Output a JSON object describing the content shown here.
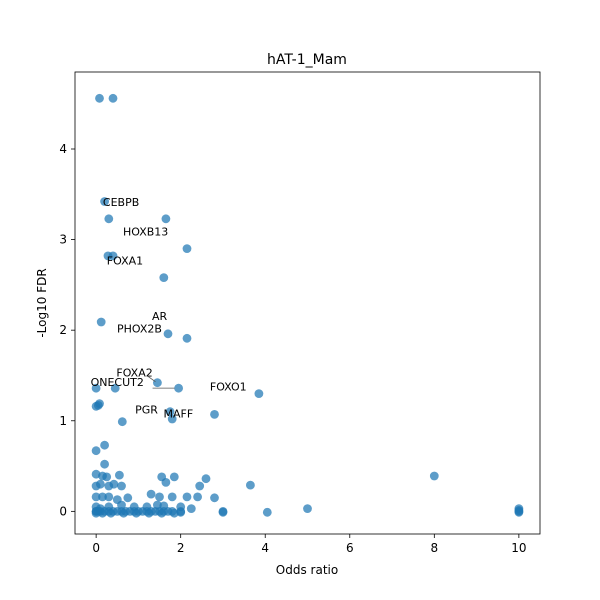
{
  "chart_data": {
    "type": "scatter",
    "title": "hAT-1_Mam",
    "xlabel": "Odds ratio",
    "ylabel": "-Log10 FDR",
    "xlim": [
      -0.5,
      10.5
    ],
    "ylim": [
      -0.25,
      4.85
    ],
    "xticks": [
      0,
      2,
      4,
      6,
      8,
      10
    ],
    "yticks": [
      0,
      1,
      2,
      3,
      4
    ],
    "grid": false,
    "point_color": "#1f77b4",
    "annotations": [
      {
        "label": "CEBPB",
        "x": 1.65,
        "y": 3.23
      },
      {
        "label": "HOXB13",
        "x": 2.15,
        "y": 2.9
      },
      {
        "label": "FOXA1",
        "x": 1.6,
        "y": 2.58
      },
      {
        "label": "AR",
        "x": 1.7,
        "y": 1.96
      },
      {
        "label": "PHOX2B",
        "x": 2.15,
        "y": 1.91
      },
      {
        "label": "FOXA2",
        "x": 1.45,
        "y": 1.42
      },
      {
        "label": "ONECUT2",
        "x": 1.95,
        "y": 1.36
      },
      {
        "label": "FOXO1",
        "x": 3.85,
        "y": 1.3
      },
      {
        "label": "PGR",
        "x": 1.75,
        "y": 1.1
      },
      {
        "label": "MAFF",
        "x": 2.8,
        "y": 1.07
      }
    ],
    "points": [
      [
        0.08,
        4.56
      ],
      [
        0.4,
        4.56
      ],
      [
        0.2,
        3.42
      ],
      [
        0.3,
        3.23
      ],
      [
        1.65,
        3.23
      ],
      [
        0.28,
        2.82
      ],
      [
        0.4,
        2.82
      ],
      [
        2.15,
        2.9
      ],
      [
        1.6,
        2.58
      ],
      [
        0.12,
        2.09
      ],
      [
        1.7,
        1.96
      ],
      [
        2.15,
        1.91
      ],
      [
        1.45,
        1.42
      ],
      [
        1.95,
        1.36
      ],
      [
        0.0,
        1.36
      ],
      [
        0.45,
        1.36
      ],
      [
        3.85,
        1.3
      ],
      [
        0.08,
        1.19
      ],
      [
        0.05,
        1.17
      ],
      [
        0.0,
        1.16
      ],
      [
        1.75,
        1.1
      ],
      [
        2.8,
        1.07
      ],
      [
        1.8,
        1.02
      ],
      [
        0.62,
        0.99
      ],
      [
        0.2,
        0.73
      ],
      [
        0.0,
        0.67
      ],
      [
        0.2,
        0.52
      ],
      [
        0.0,
        0.41
      ],
      [
        0.15,
        0.39
      ],
      [
        0.25,
        0.38
      ],
      [
        0.55,
        0.4
      ],
      [
        1.55,
        0.38
      ],
      [
        1.85,
        0.38
      ],
      [
        2.6,
        0.36
      ],
      [
        1.65,
        0.32
      ],
      [
        8.0,
        0.39
      ],
      [
        3.65,
        0.29
      ],
      [
        2.45,
        0.28
      ],
      [
        0.0,
        0.28
      ],
      [
        0.1,
        0.3
      ],
      [
        0.3,
        0.28
      ],
      [
        0.42,
        0.3
      ],
      [
        0.6,
        0.28
      ],
      [
        0.0,
        0.16
      ],
      [
        0.15,
        0.16
      ],
      [
        0.3,
        0.16
      ],
      [
        0.5,
        0.13
      ],
      [
        0.75,
        0.15
      ],
      [
        1.3,
        0.19
      ],
      [
        1.5,
        0.16
      ],
      [
        1.8,
        0.16
      ],
      [
        2.15,
        0.16
      ],
      [
        2.4,
        0.16
      ],
      [
        2.8,
        0.15
      ],
      [
        0.0,
        0.05
      ],
      [
        0.1,
        0.03
      ],
      [
        0.3,
        0.05
      ],
      [
        0.6,
        0.07
      ],
      [
        0.9,
        0.05
      ],
      [
        1.2,
        0.05
      ],
      [
        1.45,
        0.07
      ],
      [
        1.6,
        0.06
      ],
      [
        2.0,
        0.05
      ],
      [
        2.25,
        0.03
      ],
      [
        5.0,
        0.03
      ],
      [
        10.0,
        0.03
      ],
      [
        0.0,
        0.0
      ],
      [
        0.0,
        0.0
      ],
      [
        0.05,
        0.0
      ],
      [
        0.1,
        0.0
      ],
      [
        0.2,
        0.0
      ],
      [
        0.3,
        0.0
      ],
      [
        0.4,
        0.0
      ],
      [
        0.5,
        0.0
      ],
      [
        0.6,
        0.0
      ],
      [
        0.7,
        0.0
      ],
      [
        0.8,
        0.0
      ],
      [
        0.9,
        0.0
      ],
      [
        1.0,
        0.0
      ],
      [
        1.1,
        0.0
      ],
      [
        1.2,
        0.0
      ],
      [
        1.3,
        0.0
      ],
      [
        1.4,
        0.0
      ],
      [
        1.5,
        0.0
      ],
      [
        1.6,
        0.0
      ],
      [
        1.7,
        0.0
      ],
      [
        1.8,
        0.0
      ],
      [
        2.0,
        0.0
      ],
      [
        3.0,
        0.0
      ],
      [
        3.0,
        -0.01
      ],
      [
        4.05,
        -0.01
      ],
      [
        10.0,
        0.0
      ],
      [
        10.0,
        -0.01
      ],
      [
        10.0,
        0.01
      ],
      [
        0.0,
        -0.02
      ],
      [
        0.15,
        -0.02
      ],
      [
        0.35,
        -0.02
      ],
      [
        0.65,
        -0.02
      ],
      [
        0.95,
        -0.02
      ],
      [
        1.25,
        -0.02
      ],
      [
        1.55,
        -0.02
      ],
      [
        1.85,
        -0.02
      ],
      [
        2.0,
        -0.01
      ]
    ]
  }
}
